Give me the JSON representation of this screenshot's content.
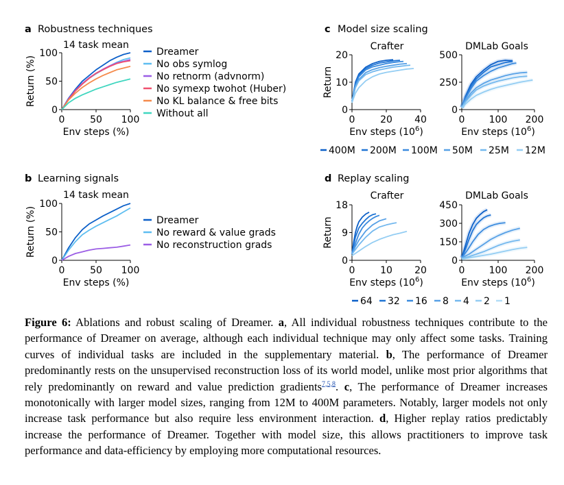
{
  "colors": {
    "dreamer": "#0b5fc8",
    "lightblue": "#5dbdf0",
    "purple": "#9b5de5",
    "red": "#f0506e",
    "orange": "#f58a4b",
    "teal": "#3fd6bf",
    "scale": [
      "#0b5fc8",
      "#1f74d4",
      "#3a8ade",
      "#56a0e6",
      "#73b8ee",
      "#93cdf3",
      "#b2ddf7"
    ]
  },
  "panel_a": {
    "letter": "a",
    "title": "Robustness techniques",
    "subtitle": "14 task mean",
    "legend": [
      "Dreamer",
      "No obs symlog",
      "No retnorm (advnorm)",
      "No symexp twohot (Huber)",
      "No KL balance & free bits",
      "Without all"
    ]
  },
  "panel_b": {
    "letter": "b",
    "title": "Learning signals",
    "subtitle": "14 task mean",
    "legend": [
      "Dreamer",
      "No reward & value grads",
      "No reconstruction grads"
    ]
  },
  "panel_c": {
    "letter": "c",
    "title": "Model size scaling",
    "left_title": "Crafter",
    "right_title": "DMLab Goals",
    "legend": [
      "400M",
      "200M",
      "100M",
      "50M",
      "25M",
      "12M"
    ]
  },
  "panel_d": {
    "letter": "d",
    "title": "Replay scaling",
    "left_title": "Crafter",
    "right_title": "DMLab Goals",
    "legend": [
      "64",
      "32",
      "16",
      "8",
      "4",
      "2",
      "1"
    ]
  },
  "chart_data": [
    {
      "id": "a",
      "type": "line",
      "title": "14 task mean",
      "xlabel": "Env steps (%)",
      "ylabel": "Return (%)",
      "xlim": [
        0,
        100
      ],
      "ylim": [
        0,
        100
      ],
      "xticks": [
        0,
        50,
        100
      ],
      "yticks": [
        0,
        50,
        100
      ],
      "x": [
        0,
        10,
        20,
        30,
        40,
        50,
        60,
        70,
        80,
        90,
        100
      ],
      "series": [
        {
          "name": "Dreamer",
          "color": "dreamer",
          "values": [
            0,
            20,
            36,
            50,
            60,
            70,
            78,
            86,
            92,
            97,
            100
          ]
        },
        {
          "name": "No obs symlog",
          "color": "lightblue",
          "values": [
            0,
            18,
            33,
            45,
            55,
            63,
            70,
            77,
            83,
            88,
            91
          ]
        },
        {
          "name": "No retnorm (advnorm)",
          "color": "purple",
          "values": [
            0,
            19,
            34,
            46,
            56,
            64,
            71,
            77,
            82,
            85,
            88
          ]
        },
        {
          "name": "No symexp twohot (Huber)",
          "color": "red",
          "values": [
            0,
            18,
            33,
            45,
            55,
            64,
            70,
            76,
            81,
            84,
            86
          ]
        },
        {
          "name": "No KL balance & free bits",
          "color": "orange",
          "values": [
            0,
            17,
            29,
            39,
            47,
            54,
            60,
            65,
            70,
            73,
            76
          ]
        },
        {
          "name": "Without all",
          "color": "teal",
          "values": [
            0,
            12,
            20,
            26,
            31,
            36,
            40,
            44,
            48,
            51,
            54
          ]
        }
      ]
    },
    {
      "id": "b",
      "type": "line",
      "title": "14 task mean",
      "xlabel": "Env steps (%)",
      "ylabel": "Return (%)",
      "xlim": [
        0,
        100
      ],
      "ylim": [
        0,
        100
      ],
      "xticks": [
        0,
        50,
        100
      ],
      "yticks": [
        0,
        50,
        100
      ],
      "x": [
        0,
        10,
        20,
        30,
        40,
        50,
        60,
        70,
        80,
        90,
        100
      ],
      "series": [
        {
          "name": "Dreamer",
          "color": "dreamer",
          "values": [
            0,
            22,
            40,
            54,
            64,
            71,
            78,
            84,
            90,
            96,
            100
          ]
        },
        {
          "name": "No reward & value grads",
          "color": "lightblue",
          "values": [
            0,
            18,
            33,
            45,
            53,
            60,
            66,
            72,
            78,
            85,
            92
          ]
        },
        {
          "name": "No reconstruction grads",
          "color": "purple",
          "values": [
            0,
            7,
            12,
            15,
            18,
            20,
            21,
            22,
            23,
            25,
            27
          ]
        }
      ]
    },
    {
      "id": "c-crafter",
      "type": "line",
      "title": "Crafter",
      "xlabel": "Env steps (10^6)",
      "ylabel": "Return",
      "xlim": [
        0,
        40
      ],
      "ylim": [
        0,
        20
      ],
      "xticks": [
        0,
        20,
        40
      ],
      "yticks": [
        0,
        10,
        20
      ],
      "series": [
        {
          "name": "400M",
          "color_index": 0,
          "x": [
            0,
            2,
            4,
            8,
            12,
            16,
            20,
            24
          ],
          "values": [
            3,
            10,
            13,
            15.5,
            16.8,
            17.6,
            18,
            18.2
          ]
        },
        {
          "name": "200M",
          "color_index": 1,
          "x": [
            0,
            2,
            4,
            8,
            12,
            16,
            20,
            24,
            28
          ],
          "values": [
            3,
            9.5,
            12.5,
            15,
            16.2,
            17,
            17.4,
            17.8,
            18
          ]
        },
        {
          "name": "100M",
          "color_index": 2,
          "x": [
            0,
            2,
            4,
            8,
            12,
            16,
            20,
            24,
            28,
            30
          ],
          "values": [
            3,
            9,
            12,
            14.5,
            15.6,
            16.2,
            16.8,
            17.2,
            17.5,
            17.6
          ]
        },
        {
          "name": "50M",
          "color_index": 3,
          "x": [
            0,
            2,
            4,
            8,
            12,
            16,
            20,
            24,
            28,
            32
          ],
          "values": [
            3,
            8.5,
            11,
            13.5,
            14.6,
            15.3,
            15.8,
            16.2,
            16.6,
            16.8
          ]
        },
        {
          "name": "25M",
          "color_index": 4,
          "x": [
            0,
            2,
            4,
            8,
            12,
            16,
            20,
            24,
            28,
            32,
            34
          ],
          "values": [
            3,
            8,
            10.5,
            12.8,
            13.8,
            14.5,
            15,
            15.5,
            15.8,
            16.1,
            16.2
          ]
        },
        {
          "name": "12M",
          "color_index": 5,
          "x": [
            0,
            2,
            4,
            8,
            12,
            16,
            20,
            24,
            28,
            32,
            36
          ],
          "values": [
            2.5,
            6,
            8,
            10.5,
            12,
            13,
            13.6,
            14,
            14.4,
            14.8,
            15
          ]
        }
      ]
    },
    {
      "id": "c-dmlab",
      "type": "line",
      "title": "DMLab Goals",
      "xlabel": "Env steps (10^6)",
      "ylabel": "",
      "xlim": [
        0,
        200
      ],
      "ylim": [
        0,
        500
      ],
      "xticks": [
        0,
        100,
        200
      ],
      "yticks": [
        0,
        250,
        500
      ],
      "series": [
        {
          "name": "400M",
          "color_index": 0,
          "x": [
            0,
            10,
            25,
            40,
            60,
            80,
            100,
            120,
            140
          ],
          "values": [
            20,
            120,
            230,
            300,
            360,
            410,
            440,
            450,
            445
          ]
        },
        {
          "name": "200M",
          "color_index": 1,
          "x": [
            0,
            10,
            25,
            40,
            60,
            80,
            100,
            120,
            140
          ],
          "values": [
            20,
            110,
            210,
            280,
            340,
            390,
            410,
            430,
            440
          ]
        },
        {
          "name": "100M",
          "color_index": 2,
          "x": [
            0,
            10,
            25,
            40,
            60,
            80,
            100,
            120,
            140,
            150
          ],
          "values": [
            20,
            100,
            190,
            260,
            310,
            350,
            380,
            400,
            420,
            425
          ]
        },
        {
          "name": "50M",
          "color_index": 3,
          "x": [
            0,
            10,
            25,
            40,
            60,
            80,
            100,
            120,
            140,
            160,
            180
          ],
          "values": [
            20,
            80,
            150,
            200,
            240,
            270,
            290,
            310,
            325,
            335,
            340
          ]
        },
        {
          "name": "25M",
          "color_index": 4,
          "x": [
            0,
            10,
            25,
            40,
            60,
            80,
            100,
            120,
            140,
            160,
            180
          ],
          "values": [
            20,
            70,
            130,
            180,
            215,
            240,
            260,
            275,
            290,
            300,
            305
          ]
        },
        {
          "name": "12M",
          "color_index": 5,
          "x": [
            0,
            10,
            25,
            40,
            60,
            80,
            100,
            120,
            140,
            160,
            180,
            195
          ],
          "values": [
            15,
            50,
            95,
            130,
            160,
            185,
            205,
            220,
            235,
            250,
            262,
            270
          ]
        }
      ]
    },
    {
      "id": "d-crafter",
      "type": "line",
      "title": "Crafter",
      "xlabel": "Env steps (10^6)",
      "ylabel": "Return",
      "xlim": [
        0,
        20
      ],
      "ylim": [
        0,
        18
      ],
      "xticks": [
        0,
        10,
        20
      ],
      "yticks": [
        0,
        9,
        18
      ],
      "series": [
        {
          "name": "64",
          "color_index": 0,
          "x": [
            0,
            0.5,
            1,
            1.5,
            2,
            3,
            4,
            5
          ],
          "values": [
            2,
            6,
            9,
            11,
            12.5,
            14,
            15,
            15.6
          ]
        },
        {
          "name": "32",
          "color_index": 1,
          "x": [
            0,
            0.5,
            1,
            2,
            3,
            4,
            5,
            6,
            7
          ],
          "values": [
            2,
            5,
            7.5,
            10.5,
            12,
            13.2,
            14.2,
            14.8,
            15.1
          ]
        },
        {
          "name": "16",
          "color_index": 2,
          "x": [
            0,
            1,
            2,
            3,
            4,
            5,
            6,
            7,
            8
          ],
          "values": [
            2,
            5.5,
            8.5,
            10.5,
            11.8,
            12.8,
            13.6,
            14.2,
            14.6
          ]
        },
        {
          "name": "8",
          "color_index": 3,
          "x": [
            0,
            1,
            2,
            4,
            6,
            8,
            10
          ],
          "values": [
            2,
            4.5,
            6.5,
            9.5,
            11.5,
            12.8,
            13.5
          ]
        },
        {
          "name": "4",
          "color_index": 4,
          "x": [
            0,
            1,
            2,
            4,
            6,
            8,
            10,
            12,
            13
          ],
          "values": [
            2,
            3.5,
            5,
            7.5,
            9.5,
            10.8,
            11.5,
            12,
            12.2
          ]
        },
        {
          "name": "2",
          "color_index": 5,
          "x": [
            0,
            2,
            4,
            6,
            8,
            10,
            12,
            14,
            16
          ],
          "values": [
            1.5,
            3,
            4.5,
            5.8,
            6.8,
            7.6,
            8.3,
            8.8,
            9.4
          ]
        }
      ]
    },
    {
      "id": "d-dmlab",
      "type": "line",
      "title": "DMLab Goals",
      "xlabel": "Env steps (10^6)",
      "ylabel": "",
      "xlim": [
        0,
        200
      ],
      "ylim": [
        0,
        450
      ],
      "xticks": [
        0,
        100,
        200
      ],
      "yticks": [
        0,
        150,
        300,
        450
      ],
      "series": [
        {
          "name": "64",
          "color_index": 0,
          "x": [
            0,
            10,
            20,
            30,
            40,
            50,
            60,
            70
          ],
          "values": [
            20,
            120,
            220,
            290,
            340,
            370,
            395,
            410
          ]
        },
        {
          "name": "32",
          "color_index": 1,
          "x": [
            0,
            10,
            20,
            30,
            40,
            50,
            60,
            70,
            80
          ],
          "values": [
            20,
            90,
            170,
            240,
            290,
            320,
            345,
            360,
            368
          ]
        },
        {
          "name": "16",
          "color_index": 2,
          "x": [
            0,
            15,
            30,
            45,
            60,
            75,
            90,
            105,
            120
          ],
          "values": [
            20,
            80,
            150,
            210,
            250,
            275,
            290,
            300,
            305
          ]
        },
        {
          "name": "8",
          "color_index": 3,
          "x": [
            0,
            20,
            40,
            60,
            80,
            100,
            120,
            140,
            160
          ],
          "values": [
            20,
            50,
            90,
            130,
            170,
            200,
            225,
            245,
            260
          ]
        },
        {
          "name": "4",
          "color_index": 4,
          "x": [
            0,
            20,
            40,
            60,
            80,
            100,
            120,
            140,
            160
          ],
          "values": [
            15,
            30,
            50,
            70,
            95,
            120,
            140,
            155,
            165
          ]
        },
        {
          "name": "2",
          "color_index": 5,
          "x": [
            0,
            20,
            40,
            60,
            80,
            100,
            120,
            140,
            160,
            180
          ],
          "values": [
            10,
            20,
            30,
            40,
            50,
            62,
            75,
            88,
            98,
            105
          ]
        }
      ]
    }
  ],
  "caption": {
    "label": "Figure 6:",
    "lead": "Ablations and robust scaling of Dreamer.",
    "a_letter": "a",
    "a_text": ", All individual robustness techniques contribute to the performance of Dreamer on average, although each individual technique may only affect some tasks. Training curves of individual tasks are included in the supplementary material.",
    "b_letter": "b",
    "b_text": ", The performance of Dreamer predominantly rests on the unsupervised reconstruction loss of its world model, unlike most prior algorithms that rely predominantly on reward and value prediction gradients",
    "b_refs": "7,5,8",
    "c_letter": "c",
    "c_text": ", The performance of Dreamer increases monotonically with larger model sizes, ranging from 12M to 400M parameters. Notably, larger models not only increase task performance but also require less environment interaction.",
    "d_letter": "d",
    "d_text": ", Higher replay ratios predictably increase the performance of Dreamer. Together with model size, this allows practitioners to improve task performance and data-efficiency by employing more computational resources."
  }
}
